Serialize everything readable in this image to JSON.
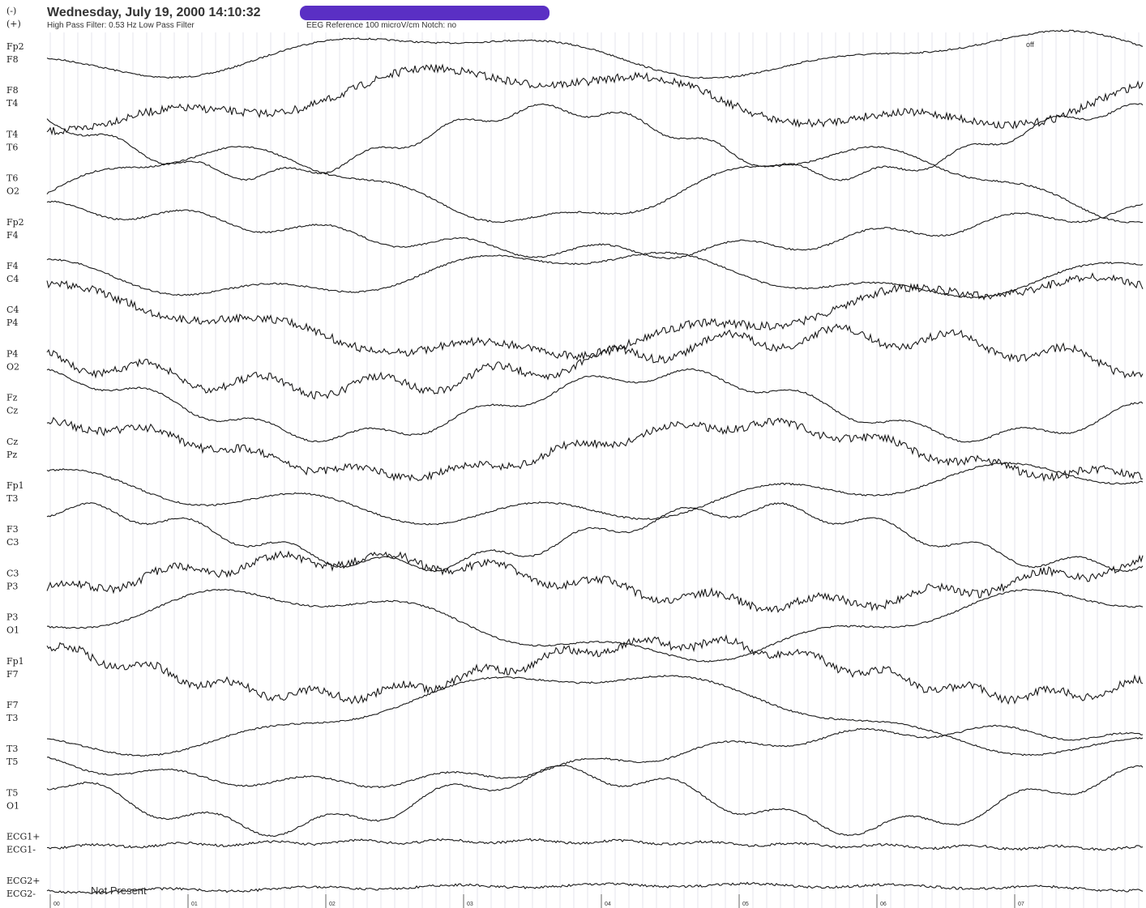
{
  "header": {
    "minus": "(-)",
    "plus": "(+)",
    "datetime": "Wednesday, July 19, 2000 14:10:32",
    "filters": "High Pass Filter: 0.53 Hz   Low Pass Filter",
    "reference": "EEG Reference   100 microV/cm   Notch: no"
  },
  "off": "off",
  "channels": [
    {
      "top": "Fp2",
      "bottom": "F8"
    },
    {
      "top": "F8",
      "bottom": "T4"
    },
    {
      "top": "T4",
      "bottom": "T6"
    },
    {
      "top": "T6",
      "bottom": "O2"
    },
    {
      "top": "Fp2",
      "bottom": "F4"
    },
    {
      "top": "F4",
      "bottom": "C4"
    },
    {
      "top": "C4",
      "bottom": "P4"
    },
    {
      "top": "P4",
      "bottom": "O2"
    },
    {
      "top": "Fz",
      "bottom": "Cz"
    },
    {
      "top": "Cz",
      "bottom": "Pz"
    },
    {
      "top": "Fp1",
      "bottom": "T3"
    },
    {
      "top": "F3",
      "bottom": "C3"
    },
    {
      "top": "C3",
      "bottom": "P3"
    },
    {
      "top": "P3",
      "bottom": "O1"
    },
    {
      "top": "Fp1",
      "bottom": "F7"
    },
    {
      "top": "F7",
      "bottom": "T3"
    },
    {
      "top": "T3",
      "bottom": "T5"
    },
    {
      "top": "T5",
      "bottom": "O1"
    },
    {
      "top": "ECG1+",
      "bottom": "ECG1-"
    },
    {
      "top": "ECG2+",
      "bottom": "ECG2-"
    }
  ],
  "not_present": "Not Present",
  "time_marks": [
    "00",
    "01",
    "02",
    "03",
    "04",
    "05",
    "06",
    "07"
  ]
}
